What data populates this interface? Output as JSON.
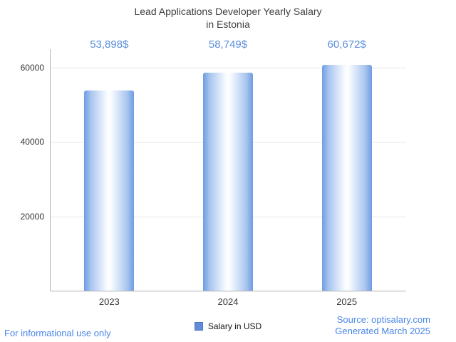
{
  "title": {
    "line1": "Lead Applications Developer Yearly Salary",
    "line2": "in Estonia"
  },
  "chart_data": {
    "type": "bar",
    "title": "Lead Applications Developer Yearly Salary in Estonia",
    "categories": [
      "2023",
      "2024",
      "2025"
    ],
    "values": [
      53898,
      58749,
      60672
    ],
    "value_labels": [
      "53,898$",
      "58,749$",
      "60,672$"
    ],
    "series_name": "Salary in USD",
    "xlabel": "",
    "ylabel": "",
    "ylim": [
      0,
      65000
    ],
    "yticks": [
      20000,
      40000,
      60000
    ],
    "ytick_labels": [
      "20000",
      "40000",
      "60000"
    ],
    "grid": true,
    "legend_position": "bottom"
  },
  "legend": {
    "label": "Salary in USD"
  },
  "footer": {
    "left": "For informational use only",
    "source": "Source: optisalary.com",
    "generated": "Generated March 2025"
  },
  "colors": {
    "value_label_text": "#5b8dd9",
    "footer_text": "#4a86e8",
    "bar_edge": "#6f9ce2",
    "bar_center": "#ffffff",
    "gridline": "#e7e7e7",
    "axis": "#b3b3b3",
    "title_text": "#3f3f3f"
  }
}
